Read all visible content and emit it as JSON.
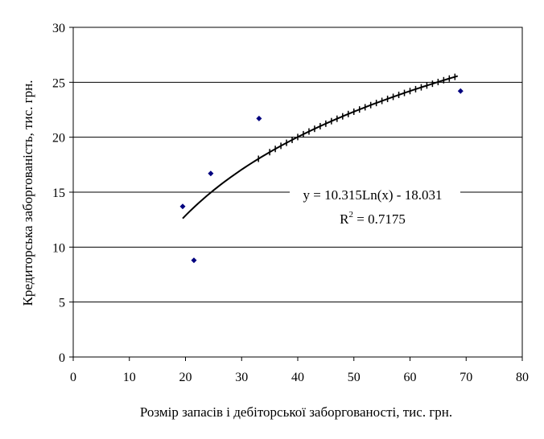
{
  "chart_data": {
    "type": "scatter",
    "xlabel": "Розмір запасів і дебіторської заборгованості, тис. грн.",
    "ylabel": "Кредиторська заборгованість, тис. грн.",
    "xlim": [
      0,
      80
    ],
    "ylim": [
      0,
      30
    ],
    "x_ticks": [
      "0",
      "10",
      "20",
      "30",
      "40",
      "50",
      "60",
      "70",
      "80"
    ],
    "y_ticks": [
      "0",
      "5",
      "10",
      "15",
      "20",
      "25",
      "30"
    ],
    "grid": "horizontal",
    "marker_color": "#00007f",
    "trend_color": "#000000",
    "series": [
      {
        "values": [
          {
            "x": 19.5,
            "y": 13.7
          },
          {
            "x": 21.5,
            "y": 8.8
          },
          {
            "x": 24.5,
            "y": 16.7
          },
          {
            "x": 33.1,
            "y": 21.7
          },
          {
            "x": 69.0,
            "y": 24.2
          }
        ]
      }
    ],
    "trendline": {
      "type": "logarithmic",
      "a": 10.315,
      "b": -18.031,
      "x_range": [
        19.5,
        68.5
      ],
      "tick_x": [
        33,
        35,
        36,
        37,
        38,
        39,
        40,
        41,
        42,
        43,
        44,
        45,
        46,
        47,
        48,
        49,
        50,
        51,
        52,
        53,
        54,
        55,
        56,
        57,
        58,
        59,
        60,
        61,
        62,
        63,
        64,
        65,
        66,
        67,
        68
      ],
      "equation": "y = 10.315Ln(x) - 18.031",
      "r2_prefix": "R",
      "r2_sup": "2",
      "r2_value": " = 0.7175"
    }
  }
}
